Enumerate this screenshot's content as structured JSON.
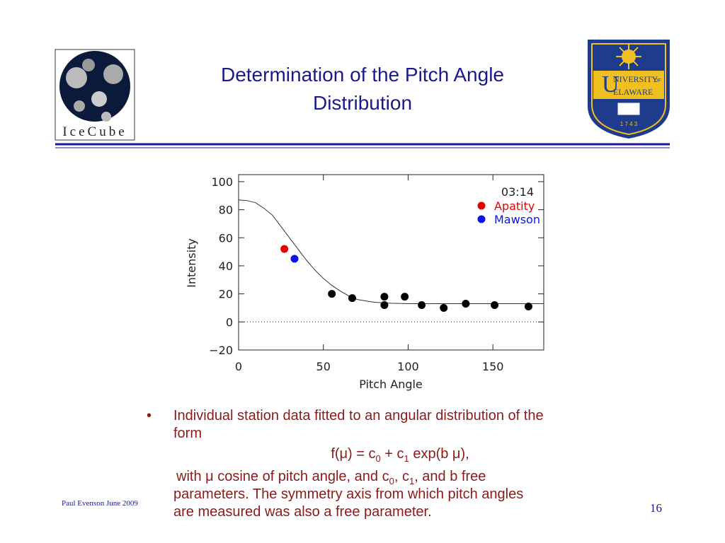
{
  "header": {
    "title_lines": [
      "Determination of the Pitch Angle",
      "Distribution"
    ],
    "left_logo": "IceCube",
    "right_logo": {
      "line1": "NIVERSITY",
      "of": "OF",
      "line2": "ELAWARE",
      "year": "1 7 4 3"
    }
  },
  "chart_data": {
    "type": "scatter",
    "x_label": "Pitch Angle",
    "y_label": "Intensity",
    "annotation": "03:14",
    "xlim": [
      0,
      180
    ],
    "ylim": [
      -20,
      105
    ],
    "xticks": [
      0,
      50,
      100,
      150
    ],
    "yticks": [
      {
        "value": -20,
        "label": "−20"
      },
      0,
      20,
      40,
      60,
      80,
      100
    ],
    "hline": 0,
    "curve": {
      "x": [
        0,
        5,
        10,
        15,
        20,
        25,
        30,
        35,
        40,
        45,
        50,
        55,
        60,
        65,
        70,
        75,
        80,
        90,
        100,
        120,
        140,
        160,
        180
      ],
      "values": [
        87,
        86.5,
        85,
        81,
        76,
        68,
        60,
        52,
        44,
        37,
        31,
        26,
        22,
        18.5,
        16,
        15,
        14,
        13.3,
        13,
        13,
        13,
        13,
        13
      ]
    },
    "series": [
      {
        "name": "Apatity",
        "color": "#e60000",
        "x": [
          27
        ],
        "values": [
          52
        ]
      },
      {
        "name": "Mawson",
        "color": "#0a14e6",
        "x": [
          33
        ],
        "values": [
          45
        ]
      },
      {
        "color": "#000000",
        "x": [
          55,
          67,
          86,
          86,
          98,
          108,
          121,
          134,
          151,
          171
        ],
        "values": [
          20,
          17,
          18,
          12,
          18,
          12,
          10,
          13,
          12,
          11
        ]
      }
    ]
  },
  "body": {
    "bullet": "•",
    "line0": "Individual station data fitted to an angular distribution of the",
    "line1": "form",
    "formula": [
      "f(μ) = c",
      "0",
      " + c",
      "1",
      " exp(b μ),"
    ],
    "line3": [
      "with μ cosine of pitch angle, and c",
      "0",
      ", c",
      "1",
      ", and b free"
    ],
    "line4": "parameters. The symmetry axis from which pitch angles",
    "line5": "are measured was also a free parameter."
  },
  "footer": {
    "author": "Paul Evenson  June 2009",
    "page": "16"
  }
}
